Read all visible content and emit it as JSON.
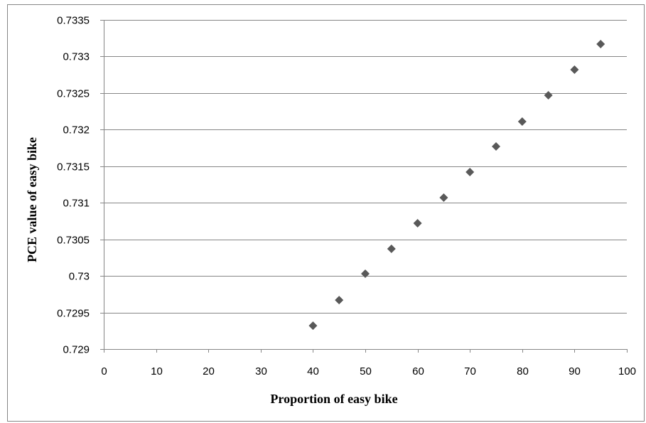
{
  "chart_data": {
    "type": "scatter",
    "title": "",
    "xlabel": "Proportion of easy bike",
    "ylabel": "PCE value of easy bike",
    "xlim": [
      0,
      100
    ],
    "ylim": [
      0.729,
      0.7335
    ],
    "x_ticks": [
      0,
      10,
      20,
      30,
      40,
      50,
      60,
      70,
      80,
      90,
      100
    ],
    "y_ticks": [
      0.729,
      0.7295,
      0.73,
      0.7305,
      0.731,
      0.7315,
      0.732,
      0.7325,
      0.733,
      0.7335
    ],
    "x_tick_labels": [
      "0",
      "10",
      "20",
      "30",
      "40",
      "50",
      "60",
      "70",
      "80",
      "90",
      "100"
    ],
    "y_tick_labels": [
      "0.729",
      "0.7295",
      "0.73",
      "0.7305",
      "0.731",
      "0.7315",
      "0.732",
      "0.7325",
      "0.733",
      "0.7335"
    ],
    "grid": "horizontal",
    "legend": "none",
    "marker": "diamond",
    "marker_color": "#595959",
    "gridline_color": "#868686",
    "series": [
      {
        "x": [
          40,
          45,
          50,
          55,
          60,
          65,
          70,
          75,
          80,
          85,
          90,
          95
        ],
        "y": [
          0.72932,
          0.72967,
          0.73003,
          0.73037,
          0.73072,
          0.73107,
          0.73142,
          0.73177,
          0.73211,
          0.73247,
          0.73282,
          0.73317
        ]
      }
    ]
  }
}
